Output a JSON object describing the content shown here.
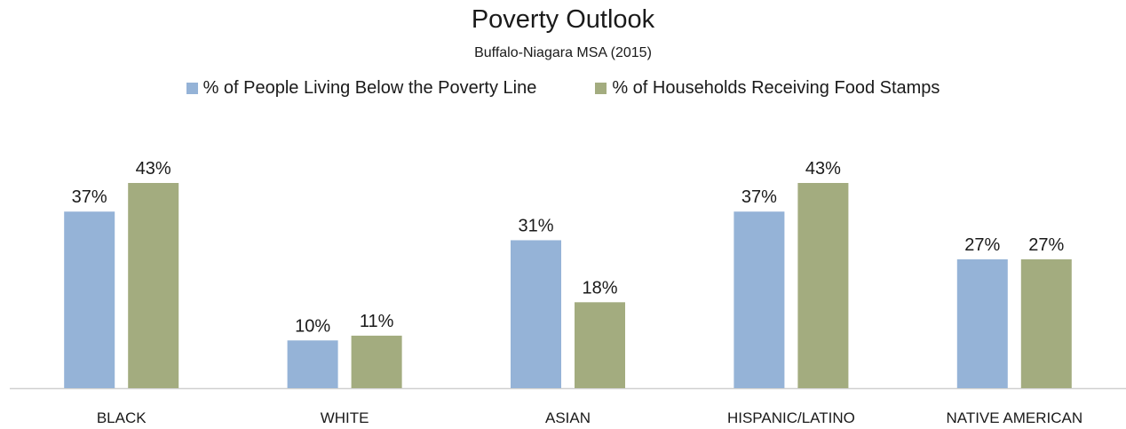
{
  "chart_data": {
    "type": "bar",
    "title": "Poverty Outlook",
    "subtitle": "Buffalo-Niagara MSA (2015)",
    "categories": [
      "BLACK",
      "WHITE",
      "ASIAN",
      "HISPANIC/LATINO",
      "NATIVE AMERICAN"
    ],
    "series": [
      {
        "name": "% of People Living Below the Poverty Line",
        "values": [
          37,
          10,
          31,
          37,
          27
        ],
        "labels": [
          "37%",
          "10%",
          "31%",
          "37%",
          "27%"
        ],
        "color": "#95b3d7"
      },
      {
        "name": "% of Households Receiving Food Stamps",
        "values": [
          43,
          11,
          18,
          43,
          27
        ],
        "labels": [
          "43%",
          "11%",
          "18%",
          "43%",
          "27%"
        ],
        "color": "#a3ac7f"
      }
    ],
    "ylim": [
      0,
      43
    ],
    "grid": false,
    "legend_position": "top"
  }
}
